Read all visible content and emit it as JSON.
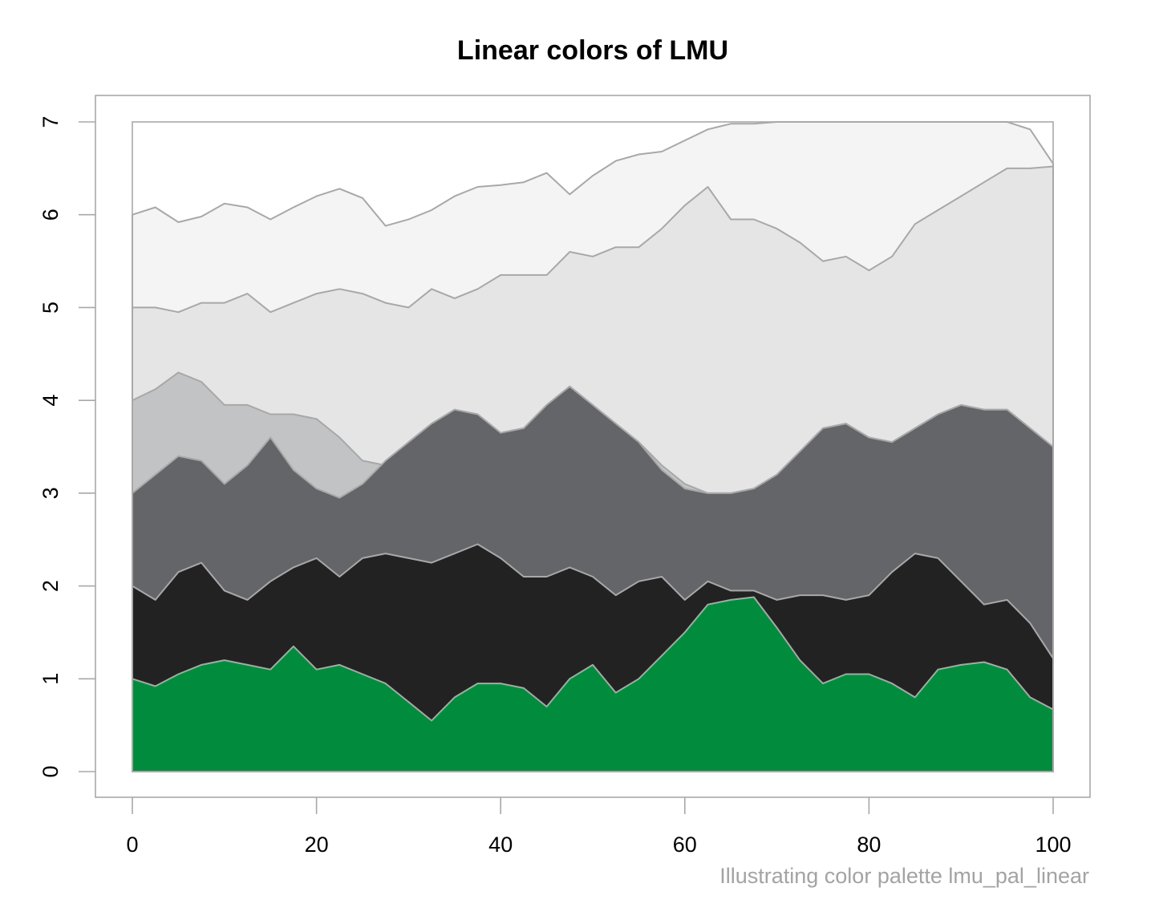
{
  "chart_data": {
    "type": "area",
    "title": "Linear colors of LMU",
    "caption": "Illustrating color palette lmu_pal_linear",
    "xlabel": "",
    "ylabel": "",
    "xlim": [
      0,
      100
    ],
    "ylim": [
      0,
      7
    ],
    "x_ticks": [
      "0",
      "20",
      "40",
      "60",
      "80",
      "100"
    ],
    "y_ticks": [
      "0",
      "1",
      "2",
      "3",
      "4",
      "5",
      "6",
      "7"
    ],
    "grid": false,
    "legend": "none",
    "x": [
      0,
      2.5,
      5,
      7.5,
      10,
      12.5,
      15,
      17.5,
      20,
      22.5,
      25,
      27.5,
      30,
      32.5,
      35,
      37.5,
      40,
      42.5,
      45,
      47.5,
      50,
      52.5,
      55,
      57.5,
      60,
      62.5,
      65,
      67.5,
      70,
      72.5,
      75,
      77.5,
      80,
      82.5,
      85,
      87.5,
      90,
      92.5,
      95,
      97.5,
      100
    ],
    "series": [
      {
        "color": "#008C3C",
        "values": [
          1.0,
          0.92,
          1.05,
          1.15,
          1.2,
          1.15,
          1.1,
          1.35,
          1.1,
          1.15,
          1.05,
          0.95,
          0.75,
          0.55,
          0.8,
          0.95,
          0.95,
          0.9,
          0.7,
          1.0,
          1.15,
          0.85,
          1.0,
          1.25,
          1.5,
          1.8,
          1.85,
          1.88,
          1.55,
          1.2,
          0.95,
          1.05,
          1.05,
          0.95,
          0.8,
          1.1,
          1.15,
          1.18,
          1.1,
          0.8,
          0.67
        ]
      },
      {
        "color": "#222222",
        "values": [
          2.0,
          1.85,
          2.15,
          2.25,
          1.95,
          1.85,
          2.05,
          2.2,
          2.3,
          2.1,
          2.3,
          2.35,
          2.3,
          2.25,
          2.35,
          2.45,
          2.3,
          2.1,
          2.1,
          2.2,
          2.1,
          1.9,
          2.05,
          2.1,
          1.85,
          2.05,
          1.95,
          1.95,
          1.85,
          1.9,
          1.9,
          1.85,
          1.9,
          2.15,
          2.35,
          2.3,
          2.05,
          1.8,
          1.85,
          1.6,
          1.22
        ]
      },
      {
        "color": "#646569",
        "values": [
          3.0,
          3.2,
          3.4,
          3.35,
          3.1,
          3.3,
          3.6,
          3.25,
          3.05,
          2.95,
          3.1,
          3.35,
          3.55,
          3.75,
          3.9,
          3.85,
          3.65,
          3.7,
          3.95,
          4.15,
          3.95,
          3.75,
          3.55,
          3.25,
          3.05,
          3.0,
          3.0,
          3.05,
          3.2,
          3.45,
          3.7,
          3.75,
          3.6,
          3.55,
          3.7,
          3.85,
          3.95,
          3.9,
          3.9,
          3.7,
          3.5
        ]
      },
      {
        "color": "#C2C3C5",
        "values": [
          4.0,
          4.12,
          4.3,
          4.2,
          3.95,
          3.95,
          3.85,
          3.85,
          3.8,
          3.6,
          3.35,
          3.3,
          3.55,
          3.75,
          3.9,
          3.85,
          3.65,
          3.7,
          3.95,
          4.15,
          3.95,
          3.75,
          3.55,
          3.3,
          3.1,
          3.0,
          3.0,
          3.05,
          3.2,
          3.45,
          3.7,
          3.75,
          3.6,
          3.55,
          3.7,
          3.85,
          3.95,
          3.9,
          3.9,
          3.7,
          3.5
        ]
      },
      {
        "color": "#E5E5E5",
        "values": [
          5.0,
          5.0,
          4.95,
          5.05,
          5.05,
          5.15,
          4.95,
          5.05,
          5.15,
          5.2,
          5.15,
          5.05,
          5.0,
          5.2,
          5.1,
          5.2,
          5.35,
          5.35,
          5.35,
          5.6,
          5.55,
          5.65,
          5.65,
          5.85,
          6.1,
          6.3,
          5.95,
          5.95,
          5.85,
          5.7,
          5.5,
          5.55,
          5.4,
          5.55,
          5.9,
          6.05,
          6.2,
          6.35,
          6.5,
          6.5,
          6.52
        ]
      },
      {
        "color": "#F4F4F4",
        "values": [
          6.0,
          6.08,
          5.92,
          5.98,
          6.12,
          6.08,
          5.95,
          6.08,
          6.2,
          6.28,
          6.18,
          5.88,
          5.95,
          6.05,
          6.2,
          6.3,
          6.32,
          6.35,
          6.45,
          6.22,
          6.42,
          6.58,
          6.65,
          6.68,
          6.8,
          6.92,
          6.98,
          6.98,
          7.0,
          7.0,
          7.0,
          7.0,
          7.0,
          7.0,
          7.0,
          7.0,
          7.0,
          7.0,
          7.0,
          6.92,
          6.55
        ]
      }
    ]
  }
}
